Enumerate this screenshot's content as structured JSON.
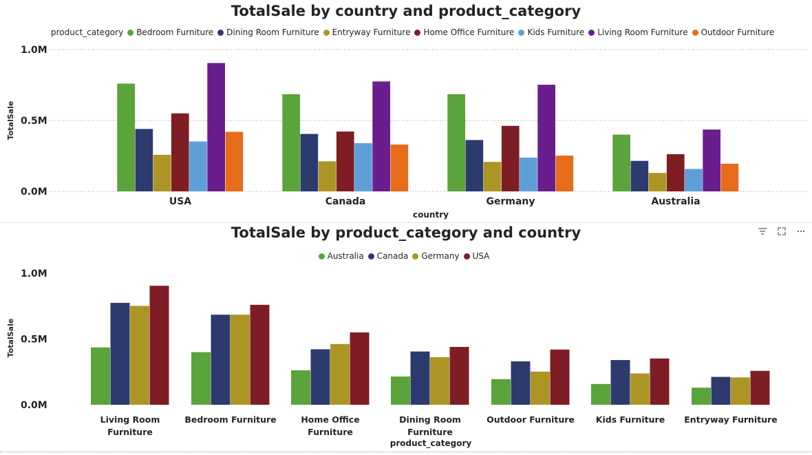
{
  "top_chart": {
    "title": "TotalSale by country and product_category",
    "legend_title": "product_category"
  },
  "bottom_chart": {
    "title": "TotalSale by product_category and country"
  },
  "header_icons": [
    "filter-icon",
    "focus-mode-icon",
    "more-options-icon"
  ],
  "chart_data": [
    {
      "type": "bar",
      "title": "TotalSale by country and product_category",
      "xlabel": "country",
      "ylabel": "TotalSale",
      "legend_title": "product_category",
      "legend_position": "top-left",
      "grid": true,
      "ylim": [
        0,
        1000000
      ],
      "y_ticks": [
        0,
        500000,
        1000000
      ],
      "y_tick_labels": [
        "0.0M",
        "0.5M",
        "1.0M"
      ],
      "categories": [
        "USA",
        "Canada",
        "Germany",
        "Australia"
      ],
      "series": [
        {
          "name": "Bedroom Furniture",
          "color": "#5ba33b",
          "values": [
            760000,
            685000,
            685000,
            400000
          ]
        },
        {
          "name": "Dining Room Furniture",
          "color": "#2d3a6e",
          "values": [
            440000,
            405000,
            362000,
            215000
          ]
        },
        {
          "name": "Entryway Furniture",
          "color": "#ad9525",
          "values": [
            258000,
            212000,
            208000,
            130000
          ]
        },
        {
          "name": "Home Office Furniture",
          "color": "#7f1d24",
          "values": [
            550000,
            422000,
            462000,
            262000
          ]
        },
        {
          "name": "Kids Furniture",
          "color": "#5f9fd8",
          "values": [
            352000,
            340000,
            238000,
            158000
          ]
        },
        {
          "name": "Living Room Furniture",
          "color": "#6a1d8c",
          "values": [
            905000,
            775000,
            752000,
            436000
          ]
        },
        {
          "name": "Outdoor Furniture",
          "color": "#e66c1c",
          "values": [
            420000,
            330000,
            252000,
            195000
          ]
        }
      ]
    },
    {
      "type": "bar",
      "title": "TotalSale by product_category and country",
      "xlabel": "product_category",
      "ylabel": "TotalSale",
      "legend_position": "top-center",
      "grid": false,
      "ylim": [
        0,
        1000000
      ],
      "y_ticks": [
        0,
        500000,
        1000000
      ],
      "y_tick_labels": [
        "0.0M",
        "0.5M",
        "1.0M"
      ],
      "categories": [
        "Living Room Furniture",
        "Bedroom Furniture",
        "Home Office Furniture",
        "Dining Room Furniture",
        "Outdoor Furniture",
        "Kids Furniture",
        "Entryway Furniture"
      ],
      "category_label_lines": [
        [
          "Living Room",
          "Furniture"
        ],
        [
          "Bedroom Furniture"
        ],
        [
          "Home Office",
          "Furniture"
        ],
        [
          "Dining Room",
          "Furniture"
        ],
        [
          "Outdoor Furniture"
        ],
        [
          "Kids Furniture"
        ],
        [
          "Entryway Furniture"
        ]
      ],
      "series": [
        {
          "name": "Australia",
          "color": "#5ba33b",
          "values": [
            436000,
            400000,
            262000,
            215000,
            195000,
            158000,
            130000
          ]
        },
        {
          "name": "Canada",
          "color": "#2d3a6e",
          "values": [
            775000,
            685000,
            422000,
            405000,
            330000,
            340000,
            212000
          ]
        },
        {
          "name": "Germany",
          "color": "#ad9525",
          "values": [
            752000,
            685000,
            462000,
            362000,
            252000,
            238000,
            208000
          ]
        },
        {
          "name": "USA",
          "color": "#7f1d24",
          "values": [
            905000,
            760000,
            550000,
            440000,
            420000,
            352000,
            258000
          ]
        }
      ]
    }
  ]
}
